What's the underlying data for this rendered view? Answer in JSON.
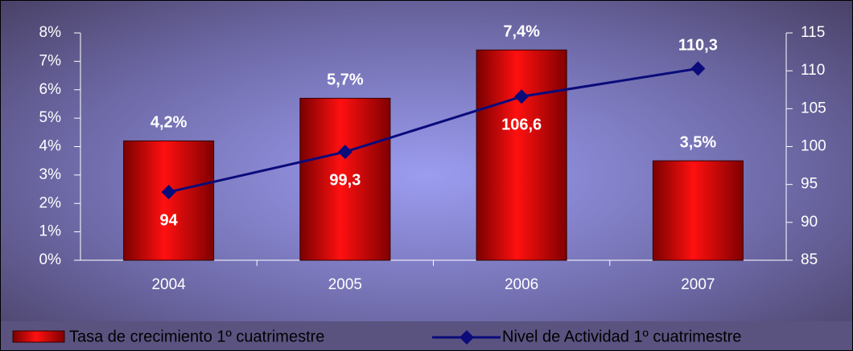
{
  "chart_data": {
    "type": "bar",
    "categories": [
      "2004",
      "2005",
      "2006",
      "2007"
    ],
    "series": [
      {
        "name": "Tasa de crecimiento 1º cuatrimestre",
        "type": "bar",
        "color": "#e00000",
        "values": [
          4.2,
          5.7,
          7.4,
          3.5
        ],
        "value_labels": [
          "4,2%",
          "5,7%",
          "7,4%",
          "3,5%"
        ]
      },
      {
        "name": "Nivel de Actividad 1º cuatrimestre",
        "type": "line",
        "axis": "y2",
        "color": "#0b0b7a",
        "values": [
          94,
          99.3,
          106.6,
          110.3
        ],
        "value_labels": [
          "94",
          "99,3",
          "106,6",
          "110,3"
        ]
      }
    ],
    "ylim": [
      0,
      8
    ],
    "yticks": [
      {
        "value": 0,
        "label": "0%"
      },
      {
        "value": 1,
        "label": "1%"
      },
      {
        "value": 2,
        "label": "2%"
      },
      {
        "value": 3,
        "label": "3%"
      },
      {
        "value": 4,
        "label": "4%"
      },
      {
        "value": 5,
        "label": "5%"
      },
      {
        "value": 6,
        "label": "6%"
      },
      {
        "value": 7,
        "label": "7%"
      },
      {
        "value": 8,
        "label": "8%"
      }
    ],
    "y2lim": [
      85,
      115
    ],
    "y2ticks": [
      85,
      90,
      95,
      100,
      105,
      110,
      115
    ],
    "legend": "bottom"
  }
}
